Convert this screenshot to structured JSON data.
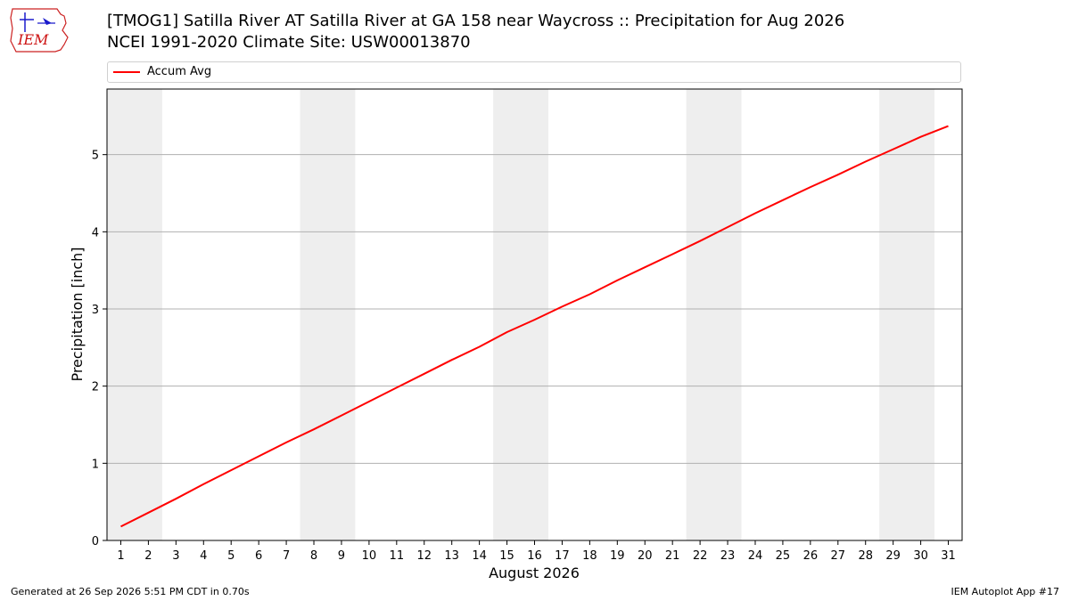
{
  "header": {
    "logo_text": "IEM",
    "title_line1": "[TMOG1] Satilla River  AT Satilla River at GA 158 near Waycross :: Precipitation for Aug 2026",
    "title_line2": "NCEI 1991-2020 Climate Site: USW00013870"
  },
  "footer": {
    "generated": "Generated at 26 Sep 2026 5:51 PM CDT in 0.70s",
    "app": "IEM Autoplot App #17"
  },
  "colors": {
    "series": "#ff0000",
    "weekend_band": "#eeeeee",
    "grid": "#b0b0b0"
  },
  "chart_data": {
    "type": "line",
    "xlabel": "August 2026",
    "ylabel": "Precipitation [inch]",
    "xlim": [
      0.5,
      31.5
    ],
    "ylim": [
      0,
      5.85
    ],
    "yticks": [
      0,
      1,
      2,
      3,
      4,
      5
    ],
    "grid": "horizontal",
    "legend_placement": "top",
    "weekend_bands": [
      [
        1,
        2
      ],
      [
        8,
        9
      ],
      [
        15,
        16
      ],
      [
        22,
        23
      ],
      [
        29,
        30
      ]
    ],
    "x": [
      1,
      2,
      3,
      4,
      5,
      6,
      7,
      8,
      9,
      10,
      11,
      12,
      13,
      14,
      15,
      16,
      17,
      18,
      19,
      20,
      21,
      22,
      23,
      24,
      25,
      26,
      27,
      28,
      29,
      30,
      31
    ],
    "x_tick_labels": [
      "1",
      "2",
      "3",
      "4",
      "5",
      "6",
      "7",
      "8",
      "9",
      "10",
      "11",
      "12",
      "13",
      "14",
      "15",
      "16",
      "17",
      "18",
      "19",
      "20",
      "21",
      "22",
      "23",
      "24",
      "25",
      "26",
      "27",
      "28",
      "29",
      "30",
      "31"
    ],
    "series": [
      {
        "name": "Accum Avg",
        "color": "#ff0000",
        "values": [
          0.18,
          0.36,
          0.54,
          0.73,
          0.91,
          1.09,
          1.27,
          1.44,
          1.62,
          1.8,
          1.98,
          2.16,
          2.34,
          2.51,
          2.7,
          2.86,
          3.03,
          3.19,
          3.37,
          3.54,
          3.71,
          3.88,
          4.06,
          4.24,
          4.41,
          4.58,
          4.74,
          4.91,
          5.07,
          5.23,
          5.37
        ]
      }
    ]
  }
}
